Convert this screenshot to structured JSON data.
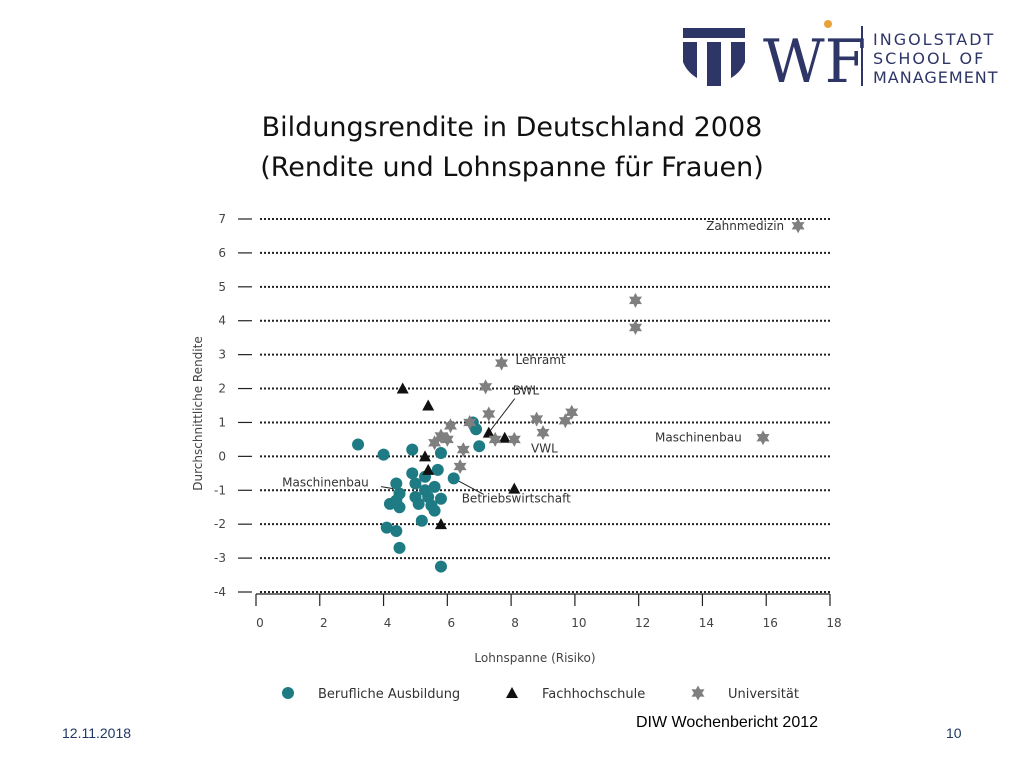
{
  "slide": {
    "title_line1": "Bildungsrendite in Deutschland 2008",
    "title_line2": "(Rendite und Lohnspanne für Frauen)",
    "date": "12.11.2018",
    "page_number": "10",
    "source": "DIW Wochenbericht 2012"
  },
  "logo": {
    "line1": "INGOLSTADT",
    "line2": "SCHOOL OF",
    "line3": "MANAGEMENT",
    "monogram": "WF",
    "navy": "#2e3567",
    "gold": "#e8a23a"
  },
  "chart_data": {
    "type": "scatter",
    "xlabel": "Lohnspanne (Risiko)",
    "ylabel": "Durchschnittliche Rendite",
    "xlim": [
      0,
      18
    ],
    "ylim": [
      -4,
      7
    ],
    "xticks": [
      0,
      2,
      4,
      6,
      8,
      10,
      12,
      14,
      16,
      18
    ],
    "yticks": [
      7,
      6,
      5,
      4,
      3,
      2,
      1,
      0,
      -1,
      -2,
      -3,
      -4
    ],
    "grid": "horizontal dotted",
    "legend_position": "bottom",
    "colors": {
      "Berufliche Ausbildung": "#1e7b84",
      "Fachhochschule": "#111111",
      "Universität": "#7f7f7f"
    },
    "series": [
      {
        "name": "Berufliche Ausbildung",
        "marker": "circle",
        "points": [
          [
            3.2,
            0.35
          ],
          [
            4.0,
            0.05
          ],
          [
            4.2,
            -1.4
          ],
          [
            4.1,
            -2.1
          ],
          [
            4.4,
            -0.8
          ],
          [
            4.4,
            -1.3
          ],
          [
            4.5,
            -1.1
          ],
          [
            4.5,
            -1.5
          ],
          [
            4.4,
            -2.2
          ],
          [
            4.5,
            -2.7
          ],
          [
            4.9,
            0.2
          ],
          [
            4.9,
            -0.5
          ],
          [
            5.0,
            -0.8
          ],
          [
            5.0,
            -1.2
          ],
          [
            5.1,
            -1.4
          ],
          [
            5.2,
            -1.9
          ],
          [
            5.3,
            -0.6
          ],
          [
            5.3,
            -1.0
          ],
          [
            5.4,
            -1.2
          ],
          [
            5.5,
            -1.45
          ],
          [
            5.6,
            -1.6
          ],
          [
            5.6,
            -0.9
          ],
          [
            5.7,
            -0.4
          ],
          [
            5.8,
            -1.25
          ],
          [
            5.8,
            0.1
          ],
          [
            5.8,
            -3.25
          ],
          [
            6.2,
            -0.65
          ],
          [
            6.8,
            1.0
          ],
          [
            6.9,
            0.8
          ],
          [
            7.0,
            0.3
          ]
        ]
      },
      {
        "name": "Fachhochschule",
        "marker": "triangle",
        "points": [
          [
            4.6,
            2.0
          ],
          [
            5.4,
            1.5
          ],
          [
            5.3,
            0.0
          ],
          [
            5.4,
            -0.4
          ],
          [
            5.8,
            -2.0
          ],
          [
            7.3,
            0.7
          ],
          [
            7.8,
            0.55
          ],
          [
            8.1,
            -0.95
          ]
        ]
      },
      {
        "name": "Universität",
        "marker": "star",
        "points": [
          [
            17.0,
            6.8
          ],
          [
            11.9,
            4.6
          ],
          [
            11.9,
            3.8
          ],
          [
            7.7,
            2.75
          ],
          [
            7.2,
            2.05
          ],
          [
            7.3,
            1.25
          ],
          [
            5.6,
            0.4
          ],
          [
            5.8,
            0.6
          ],
          [
            6.0,
            0.5
          ],
          [
            6.1,
            0.9
          ],
          [
            6.5,
            0.2
          ],
          [
            6.4,
            -0.3
          ],
          [
            6.7,
            1.0
          ],
          [
            7.5,
            0.5
          ],
          [
            8.1,
            0.5
          ],
          [
            8.8,
            1.1
          ],
          [
            9.0,
            0.7
          ],
          [
            9.7,
            1.05
          ],
          [
            9.9,
            1.3
          ],
          [
            15.9,
            0.55
          ]
        ]
      }
    ],
    "annotations": [
      {
        "text": "Zahnmedizin",
        "x": 17.0,
        "y": 6.8
      },
      {
        "text": "Lehramt",
        "x": 7.7,
        "y": 2.75
      },
      {
        "text": "BWL",
        "x": 7.3,
        "y": 0.7
      },
      {
        "text": "VWL",
        "x": 9.0,
        "y": 0.7
      },
      {
        "text": "Maschinenbau",
        "x": 15.9,
        "y": 0.55
      },
      {
        "text": "Maschinenbau",
        "x": 4.3,
        "y": -0.95
      },
      {
        "text": "Betriebswirtschaft",
        "x": 6.2,
        "y": -0.65
      }
    ]
  }
}
